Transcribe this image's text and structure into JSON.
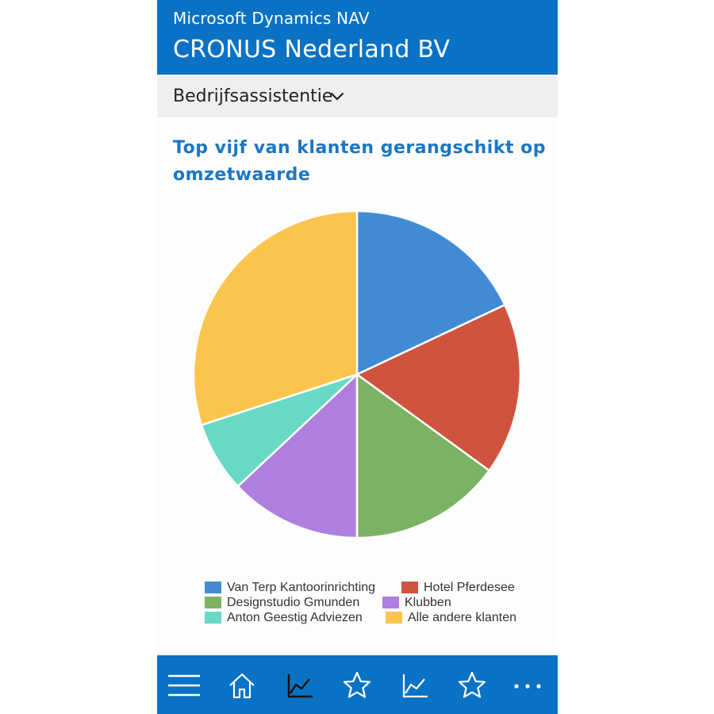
{
  "header": {
    "app_name": "Microsoft Dynamics NAV",
    "company": "CRONUS Nederland BV"
  },
  "rolecenter": {
    "label": "Bedrijfsassistentie",
    "icon": "chevron-down-icon"
  },
  "chart_data": {
    "type": "pie",
    "title": "Top vijf van klanten gerangschikt op omzetwaarde",
    "categories": [
      "Van Terp Kantoorinrichting",
      "Hotel Pferdesee",
      "Designstudio Gmunden",
      "Klubben",
      "Anton Geestig Adviezen",
      "Alle andere klanten"
    ],
    "values": [
      18.0,
      17.0,
      15.0,
      13.0,
      7.0,
      30.0
    ],
    "colors": [
      "#428bd4",
      "#d05340",
      "#7cb264",
      "#ae7fdf",
      "#67d9c5",
      "#fbc54d"
    ],
    "start_angle_deg": 0,
    "direction": "clockwise",
    "legend_position": "bottom"
  },
  "navbar": {
    "items": [
      {
        "name": "menu-icon"
      },
      {
        "name": "home-icon"
      },
      {
        "name": "chart-icon"
      },
      {
        "name": "star-icon"
      },
      {
        "name": "chart-icon"
      },
      {
        "name": "star-icon"
      },
      {
        "name": "more-icon"
      }
    ]
  },
  "colors": {
    "brand_blue": "#0a72c4",
    "title_blue": "#1c76c4",
    "rolebar_bg": "#efefef"
  }
}
